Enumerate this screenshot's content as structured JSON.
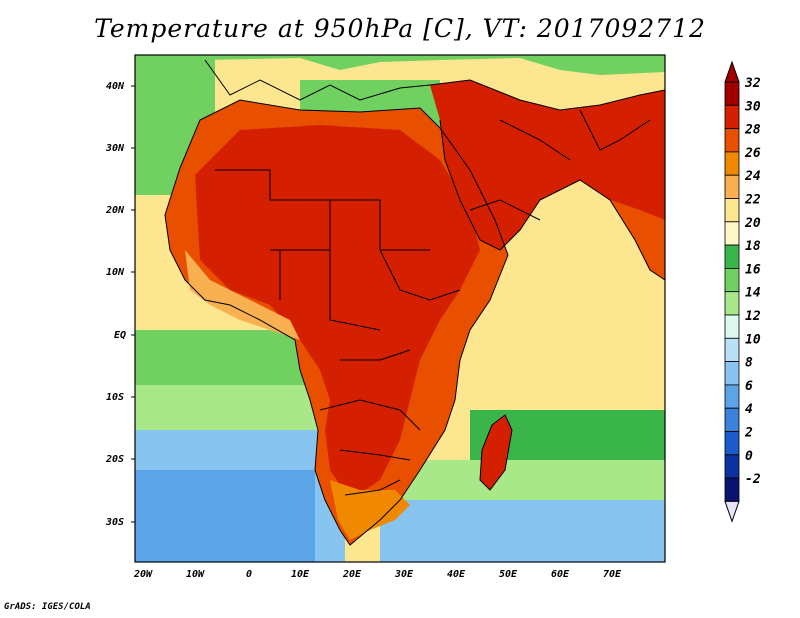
{
  "title": "Temperature at 950hPa [C], VT: 2017092712",
  "credit": "GrADS: IGES/COLA",
  "lat_labels": [
    "40N",
    "30N",
    "20N",
    "10N",
    "EQ",
    "10S",
    "20S",
    "30S"
  ],
  "lon_labels": [
    "20W",
    "10W",
    "0",
    "10E",
    "20E",
    "30E",
    "40E",
    "50E",
    "60E",
    "70E"
  ],
  "colorbar": {
    "labels": [
      "32",
      "30",
      "28",
      "26",
      "24",
      "22",
      "20",
      "18",
      "16",
      "14",
      "12",
      "10",
      "8",
      "6",
      "4",
      "2",
      "0",
      "-2"
    ],
    "colors": [
      "#a00000",
      "#d42000",
      "#e85000",
      "#f08800",
      "#f8b050",
      "#fce690",
      "#fff7c8",
      "#39b54a",
      "#70d060",
      "#a8e888",
      "#dcf8f0",
      "#b8e0f8",
      "#88c4f0",
      "#5ca4e8",
      "#3a82dc",
      "#1c5cc8",
      "#0a32a0",
      "#0a1470"
    ],
    "under_color": "#e8e4f8",
    "over_color": "#a00000"
  },
  "map_colors": {
    "ocean_warm": "#fce690",
    "ocean_mid": "#70d060",
    "ocean_cool": "#a8e888",
    "ocean_cold": "#88c4f0",
    "ocean_colder": "#5ca4e8",
    "land_hot": "#d42000",
    "land_warm": "#e85000",
    "land_mild": "#f08800",
    "land_cool": "#f8b050",
    "land_green": "#70d060"
  }
}
